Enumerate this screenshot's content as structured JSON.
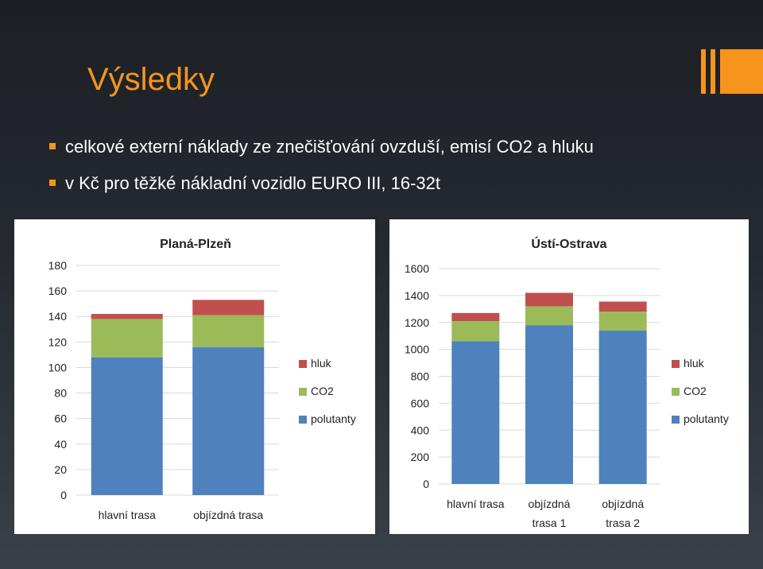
{
  "slide": {
    "title": "Výsledky",
    "bullets": [
      "celkové externí náklady ze znečišťování ovzduší, emisí CO2 a hluku",
      "v Kč pro těžké nákladní vozidlo EURO III, 16-32t"
    ]
  },
  "colors": {
    "accent": "#f7941d",
    "polutanty": "#4f81bd",
    "co2": "#9bbb59",
    "hluk": "#c0504d"
  },
  "chart_data": [
    {
      "type": "bar",
      "stacked": true,
      "title": "Planá-Plzeň",
      "categories": [
        "hlavní trasa",
        "objízdná trasa"
      ],
      "series": [
        {
          "name": "polutanty",
          "values": [
            108,
            116
          ]
        },
        {
          "name": "CO2",
          "values": [
            30,
            25
          ]
        },
        {
          "name": "hluk",
          "values": [
            4,
            12
          ]
        }
      ],
      "ylim": [
        0,
        180
      ],
      "yticks": [
        0,
        20,
        40,
        60,
        80,
        100,
        120,
        140,
        160,
        180
      ],
      "grid": true,
      "legend": "right"
    },
    {
      "type": "bar",
      "stacked": true,
      "title": "Ústí-Ostrava",
      "categories": [
        "hlavní trasa",
        "objízdná trasa 1",
        "objízdná trasa 2"
      ],
      "series": [
        {
          "name": "polutanty",
          "values": [
            1060,
            1180,
            1140
          ]
        },
        {
          "name": "CO2",
          "values": [
            150,
            140,
            140
          ]
        },
        {
          "name": "hluk",
          "values": [
            60,
            100,
            75
          ]
        }
      ],
      "ylim": [
        0,
        1600
      ],
      "yticks": [
        0,
        200,
        400,
        600,
        800,
        1000,
        1200,
        1400,
        1600
      ],
      "grid": true,
      "legend": "right"
    }
  ]
}
